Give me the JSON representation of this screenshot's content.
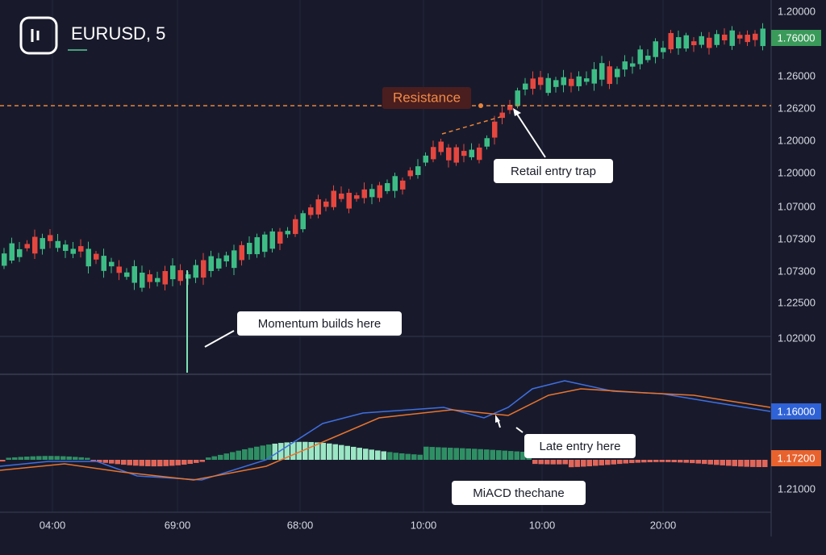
{
  "header": {
    "symbol": "EURUSD, 5"
  },
  "price_axis": [
    "1.20000",
    "1.26000",
    "1.26200",
    "1.20000",
    "1.20000",
    "1.07000",
    "1.07300",
    "1.07300",
    "1.22500",
    "1.02000",
    "1.21000"
  ],
  "badges": {
    "last_price": "1.76000",
    "macd_line": "1.16000",
    "signal_line": "1.17200"
  },
  "time_axis": [
    "04:00",
    "69:00",
    "68:00",
    "10:00",
    "10:00",
    "20:00"
  ],
  "annotations": {
    "resistance": "Resistance",
    "retail_trap": "Retail entry trap",
    "momentum": "Momentum builds here",
    "late_entry": "Late entry here",
    "macd": "MiACD thechane"
  }
}
